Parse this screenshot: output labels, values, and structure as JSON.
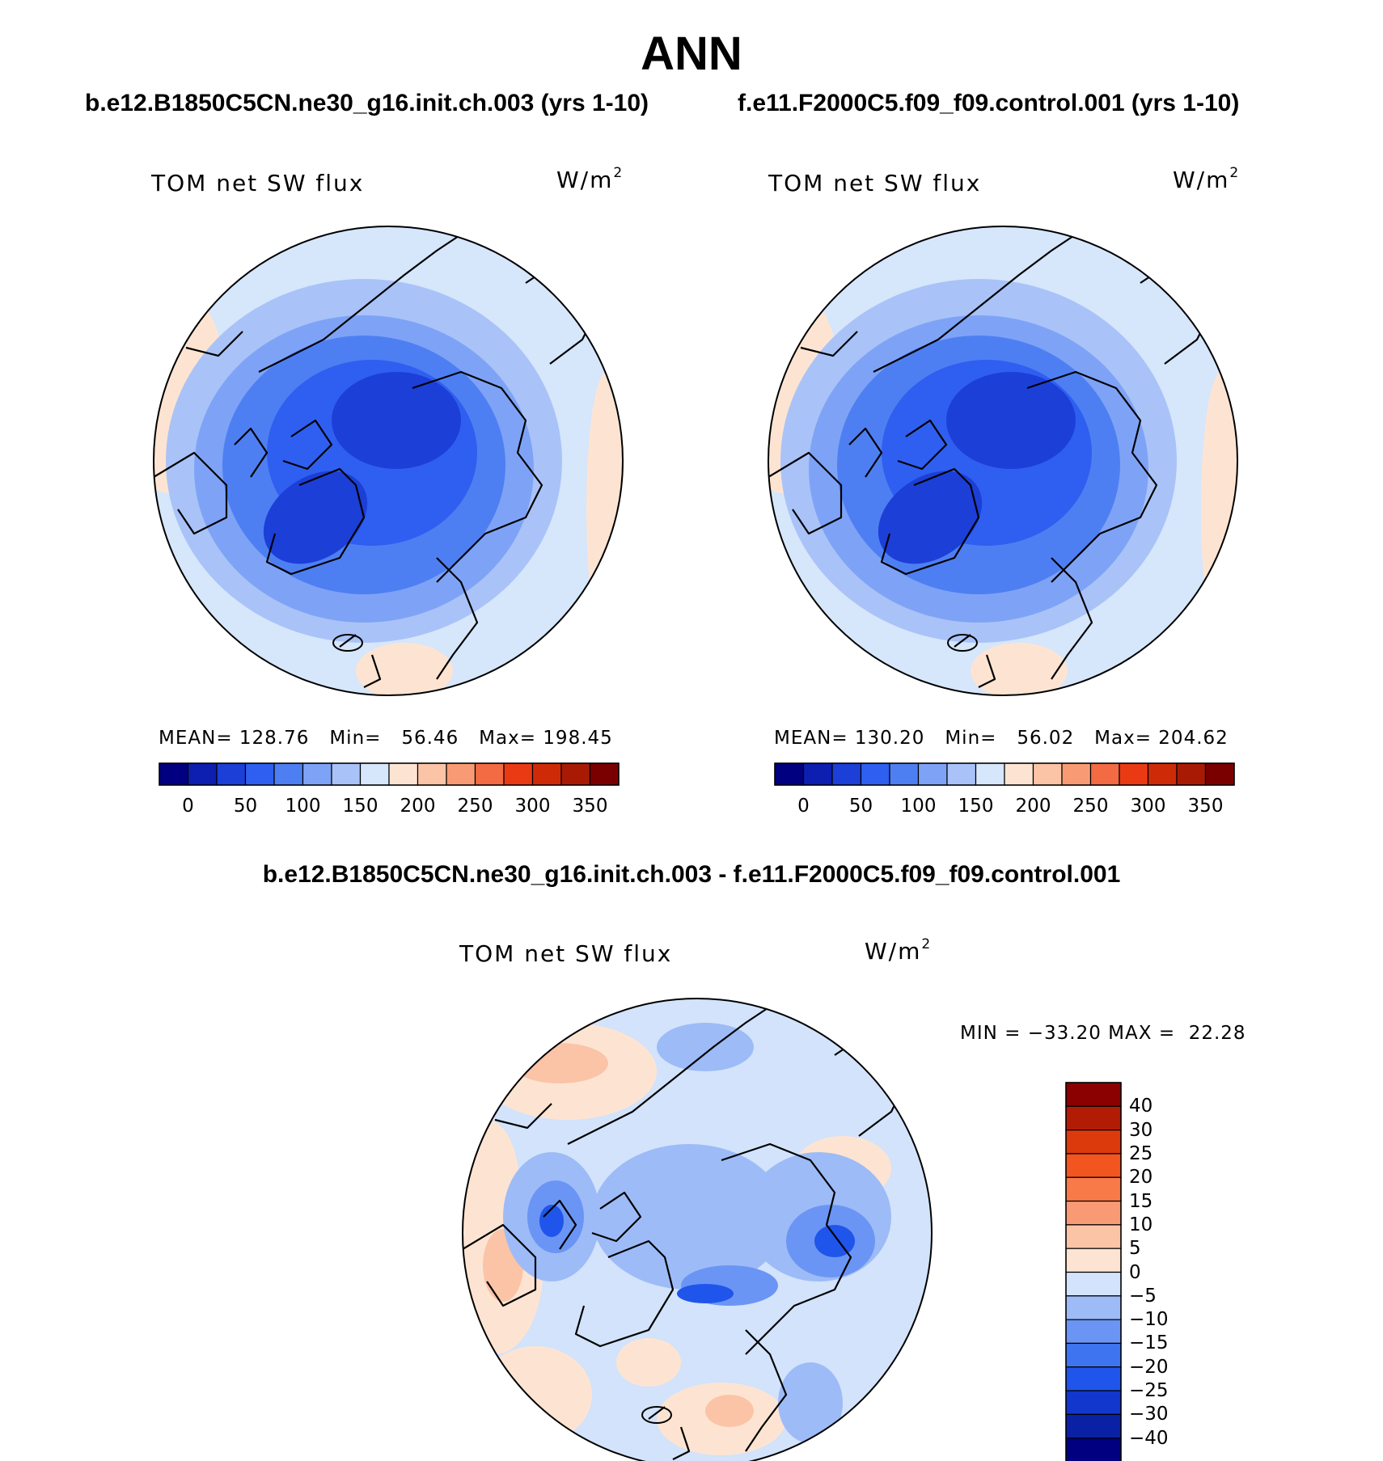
{
  "page": {
    "title": "ANN",
    "left_case": "b.e12.B1850C5CN.ne30_g16.init.ch.003 (yrs 1-10)",
    "right_case": "f.e11.F2000C5.f09_f09.control.001 (yrs 1-10)",
    "diff_case": "b.e12.B1850C5CN.ne30_g16.init.ch.003 - f.e11.F2000C5.f09_f09.control.001"
  },
  "colors": {
    "absolute_scale": [
      "#000080",
      "#0c1fb0",
      "#1c3fd8",
      "#2f5ff0",
      "#4e7ff2",
      "#7ea3f6",
      "#a9c3f8",
      "#d6e6fb",
      "#fde4d2",
      "#fbc4a6",
      "#f89b74",
      "#f26b42",
      "#ea3a14",
      "#cf2a08",
      "#a91a05",
      "#7a0000"
    ],
    "difference_scale": [
      "#000080",
      "#0a21a6",
      "#1237cc",
      "#1f55ea",
      "#3e74f0",
      "#6b95f4",
      "#9dbbf7",
      "#d2e3fb",
      "#fde4d2",
      "#fbc4a6",
      "#f89b74",
      "#f77a48",
      "#f2551f",
      "#dc3a0d",
      "#b21c05",
      "#8b0000"
    ],
    "coastline": "#000000"
  },
  "chart_data": [
    {
      "type": "heatmap",
      "projection": "north polar stereographic",
      "field": "TOM net SW flux",
      "units": "W/m2",
      "stats": {
        "mean_label": "MEAN=",
        "mean": "128.76",
        "min_label": "Min=",
        "min": "56.46",
        "max_label": "Max=",
        "max": "198.45"
      },
      "colorbar": {
        "orientation": "horizontal",
        "levels": [
          0,
          50,
          100,
          150,
          200,
          250,
          300,
          350
        ],
        "tick_labels": [
          "0",
          "50",
          "100",
          "150",
          "200",
          "250",
          "300",
          "350"
        ]
      }
    },
    {
      "type": "heatmap",
      "projection": "north polar stereographic",
      "field": "TOM net SW flux",
      "units": "W/m2",
      "stats": {
        "mean_label": "MEAN=",
        "mean": "130.20",
        "min_label": "Min=",
        "min": "56.02",
        "max_label": "Max=",
        "max": "204.62"
      },
      "colorbar": {
        "orientation": "horizontal",
        "levels": [
          0,
          50,
          100,
          150,
          200,
          250,
          300,
          350
        ],
        "tick_labels": [
          "0",
          "50",
          "100",
          "150",
          "200",
          "250",
          "300",
          "350"
        ]
      }
    },
    {
      "type": "heatmap",
      "projection": "north polar stereographic",
      "field": "TOM net SW flux",
      "units": "W/m2",
      "stats": {
        "min_label": "MIN =",
        "min": "−33.20",
        "max_label": "MAX =",
        "max": "22.28"
      },
      "colorbar": {
        "orientation": "vertical",
        "levels": [
          40,
          30,
          25,
          20,
          15,
          10,
          5,
          0,
          -5,
          -10,
          -15,
          -20,
          -25,
          -30,
          -40
        ],
        "tick_labels": [
          "40",
          "30",
          "25",
          "20",
          "15",
          "10",
          "5",
          "0",
          "−5",
          "−10",
          "−15",
          "−20",
          "−25",
          "−30",
          "−40"
        ]
      }
    }
  ]
}
